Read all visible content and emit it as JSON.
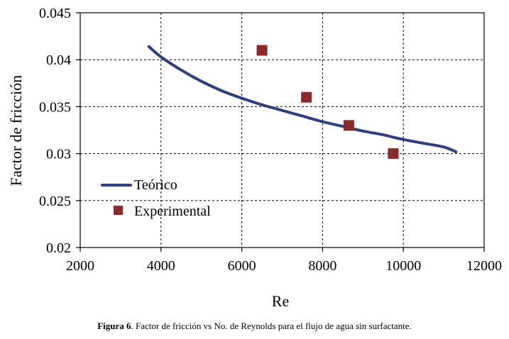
{
  "chart_data": {
    "type": "scatter",
    "title": "",
    "xlabel": "Re",
    "ylabel": "Factor de fricción",
    "xlim": [
      2000,
      12000
    ],
    "ylim": [
      0.02,
      0.045
    ],
    "xticks": [
      2000,
      4000,
      6000,
      8000,
      10000,
      12000
    ],
    "yticks": [
      0.02,
      0.025,
      0.03,
      0.035,
      0.04,
      0.045
    ],
    "xtick_labels": [
      "2000",
      "4000",
      "6000",
      "8000",
      "10000",
      "12000"
    ],
    "ytick_labels": [
      "0.02",
      "0.025",
      "0.03",
      "0.035",
      "0.04",
      "0.045"
    ],
    "grid": true,
    "legend_position": "left",
    "series": [
      {
        "name": "Teórico",
        "kind": "line",
        "color": "#2E3E7E",
        "x": [
          3700,
          4000,
          4500,
          5000,
          5500,
          6000,
          6500,
          7000,
          7500,
          8000,
          8500,
          9000,
          9500,
          10000,
          10500,
          11000,
          11300
        ],
        "y": [
          0.0414,
          0.0403,
          0.0389,
          0.0377,
          0.0367,
          0.0359,
          0.0352,
          0.0346,
          0.034,
          0.0334,
          0.0329,
          0.0324,
          0.032,
          0.0315,
          0.0311,
          0.0307,
          0.0302
        ]
      },
      {
        "name": "Experimental",
        "kind": "scatter",
        "color": "#8B2A2A",
        "x": [
          6500,
          7600,
          8650,
          9750
        ],
        "y": [
          0.041,
          0.036,
          0.033,
          0.03
        ]
      }
    ]
  },
  "caption": {
    "label": "Figura 6",
    "text": ". Factor de fricción vs No. de Reynolds para el flujo de agua sin surfactante."
  }
}
